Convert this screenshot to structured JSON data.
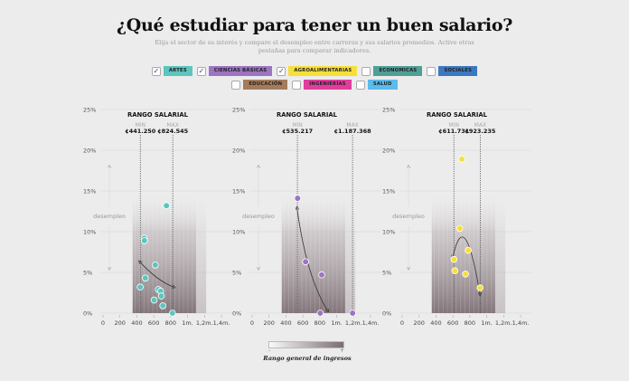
{
  "header": {
    "title": "¿Qué estudiar para tener un buen salario?",
    "subtitle": "Elija el sector de su interés y compare el desempleo entre carreras y sus salarios promedios. Active otras pestañas para comparar indicadores."
  },
  "filters": [
    {
      "label": "ARTES",
      "checked": true,
      "color": "#5bc5be"
    },
    {
      "label": "CIENCIAS BÁSICAS",
      "checked": true,
      "color": "#9d74c2"
    },
    {
      "label": "AGROALIMENTARIAS",
      "checked": true,
      "color": "#f6df3b"
    },
    {
      "label": "ECONOMICAS",
      "checked": false,
      "color": "#4f9f96"
    },
    {
      "label": "SOCIALES",
      "checked": false,
      "color": "#3c78c0"
    },
    {
      "label": "EDUCACIÓN",
      "checked": false,
      "color": "#a47c5b"
    },
    {
      "label": "INGENIERÍAS",
      "checked": false,
      "color": "#e13d9c"
    },
    {
      "label": "SALUD",
      "checked": false,
      "color": "#5bbbea"
    }
  ],
  "legend": {
    "title": "Rango general de ingresos",
    "min": "-",
    "max": "+"
  },
  "chart_data": [
    {
      "type": "scatter",
      "title": "RANGO SALARIAL",
      "sector": "ARTES",
      "color": "#5bc5be",
      "xlim": [
        0,
        1400000
      ],
      "ylim": [
        0,
        25
      ],
      "ylabel": "desempleo",
      "xticks": [
        "0",
        "200",
        "400",
        "600",
        "800",
        "1m.",
        "1,2m.",
        "1,4m."
      ],
      "yticks": [
        "0%",
        "5%",
        "10%",
        "15%",
        "20%",
        "25%"
      ],
      "min_label": "MIN",
      "max_label": "MAX",
      "min": 441250,
      "max": 824545,
      "min_text": "¢441.250",
      "max_text": "¢824.545",
      "points": [
        [
          750000,
          13.2
        ],
        [
          486000,
          9.2
        ],
        [
          489000,
          8.9
        ],
        [
          618000,
          5.9
        ],
        [
          500000,
          4.3
        ],
        [
          439000,
          3.2
        ],
        [
          654000,
          2.9
        ],
        [
          682000,
          2.7
        ],
        [
          689000,
          2.1
        ],
        [
          604000,
          1.6
        ],
        [
          707000,
          0.9
        ],
        [
          821000,
          0
        ]
      ],
      "trend": [
        [
          436000,
          6.3
        ],
        [
          636000,
          4.0
        ],
        [
          836000,
          3.2
        ]
      ]
    },
    {
      "type": "scatter",
      "title": "RANGO SALARIAL",
      "sector": "CIENCIAS BÁSICAS",
      "color": "#9d74c2",
      "xlim": [
        0,
        1400000
      ],
      "ylim": [
        0,
        25
      ],
      "ylabel": "desempleo",
      "xticks": [
        "0",
        "200",
        "400",
        "600",
        "800",
        "1m.",
        "1,2m.",
        "1,4m."
      ],
      "yticks": [
        "0%",
        "5%",
        "10%",
        "15%",
        "20%",
        "25%"
      ],
      "min_label": "MIN",
      "max_label": "MAX",
      "min": 535217,
      "max": 1187368,
      "min_text": "¢535.217",
      "max_text": "¢1.187.368",
      "points": [
        [
          538000,
          14.1
        ],
        [
          632000,
          6.3
        ],
        [
          823000,
          4.7
        ],
        [
          805000,
          0
        ],
        [
          1188000,
          0
        ]
      ],
      "trend": [
        [
          531000,
          12.9
        ],
        [
          640000,
          4.5
        ],
        [
          892000,
          0.3
        ]
      ]
    },
    {
      "type": "scatter",
      "title": "RANGO SALARIAL",
      "sector": "AGROALIMENTARIAS",
      "color": "#f6df3b",
      "xlim": [
        0,
        1400000
      ],
      "ylim": [
        0,
        25
      ],
      "ylabel": "desempleo",
      "xticks": [
        "0",
        "200",
        "400",
        "600",
        "800",
        "1m.",
        "1,2m.",
        "1,4m."
      ],
      "yticks": [
        "0%",
        "5%",
        "10%",
        "15%",
        "20%",
        "25%"
      ],
      "min_label": "MIN",
      "max_label": "MAX",
      "min": 611731,
      "max": 923235,
      "min_text": "¢611.731",
      "max_text": "¢923.235",
      "points": [
        [
          706000,
          18.9
        ],
        [
          681000,
          10.4
        ],
        [
          781000,
          7.7
        ],
        [
          613000,
          6.6
        ],
        [
          624000,
          5.2
        ],
        [
          749000,
          4.8
        ],
        [
          921000,
          3.1
        ]
      ],
      "trend": [
        [
          600000,
          6.9
        ],
        [
          740000,
          13.5
        ],
        [
          920000,
          2.3
        ]
      ]
    }
  ]
}
